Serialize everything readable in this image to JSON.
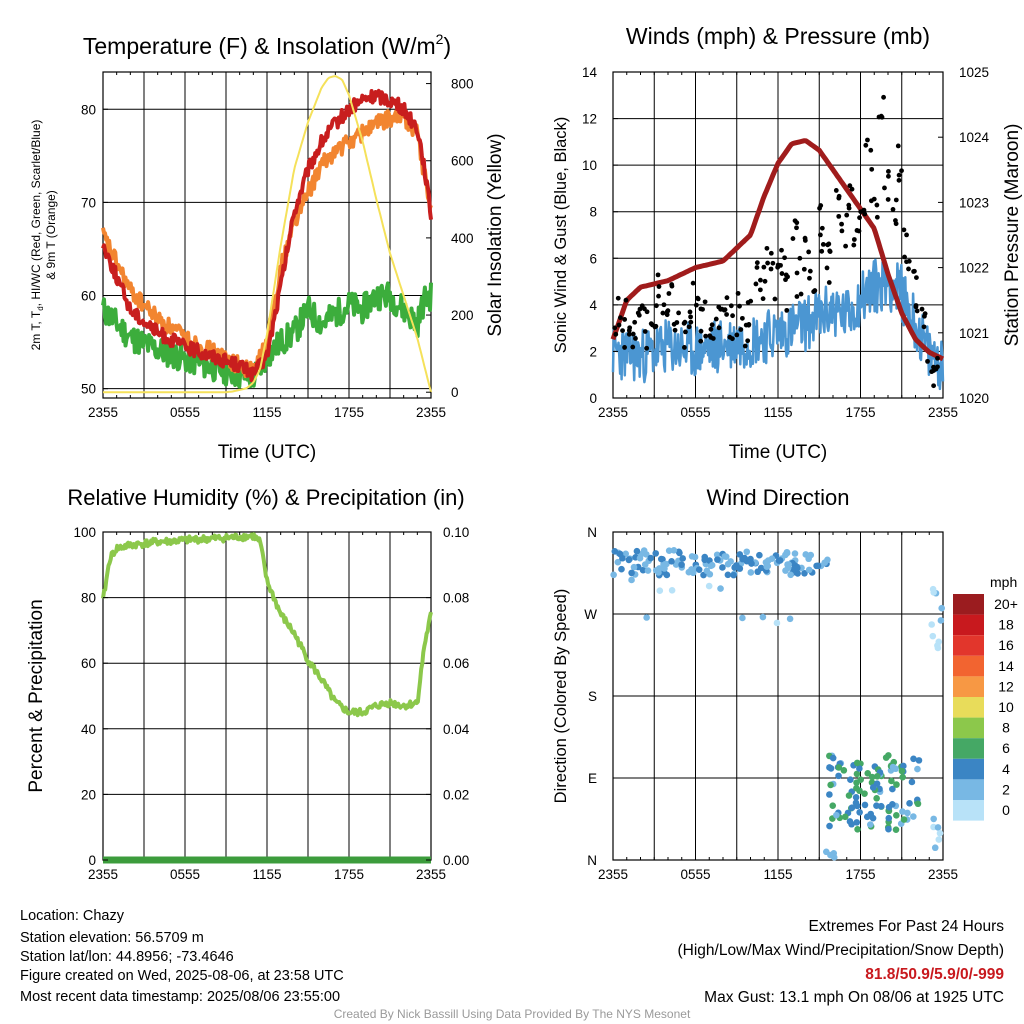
{
  "x_ticks": [
    "2355",
    "0555",
    "1155",
    "1755",
    "2355"
  ],
  "colors": {
    "temp_red": "#c81e1e",
    "td_green": "#3cad3c",
    "temp9m_orange": "#f28530",
    "insolation_yellow": "#f5e15a",
    "wind_blue": "#4b96d2",
    "pressure_maroon": "#a01c1c",
    "rh_green": "#8cc84b",
    "precip_green": "#3c9c3c",
    "extremes_red": "#c8191e"
  },
  "chart_data": [
    {
      "type": "line",
      "title": "Temperature (F) & Insolation (W/m",
      "title_sup": "2",
      "title_end": ")",
      "xlabel": "Time (UTC)",
      "ylabel_line1": "2m T, T",
      "ylabel_sub": "d",
      "ylabel_line1_end": ", HI/WC (Red, Green, Scarlet/Blue)",
      "ylabel_line2": "& 9m T (Orange)",
      "ylabel_right": "Solar Insolation (Yellow)",
      "ylim": [
        49,
        84
      ],
      "ylim_right": [
        -15,
        830
      ],
      "yticks": [
        "50",
        "60",
        "70",
        "80"
      ],
      "yticks_right": [
        "0",
        "200",
        "400",
        "600",
        "800"
      ],
      "x_hours": [
        0,
        2,
        4,
        6,
        8,
        10,
        11,
        12,
        13,
        14,
        15,
        16,
        17,
        18,
        19,
        20,
        21,
        22,
        23,
        23.5,
        24
      ],
      "series": [
        {
          "color": "#3cad3c",
          "values": [
            58.5,
            55.5,
            54.2,
            53.2,
            52.3,
            51.5,
            51.2,
            53.5,
            55.0,
            56.0,
            58.5,
            57.0,
            58.0,
            59.0,
            58.5,
            60.0,
            60.0,
            58.5,
            57.0,
            59.5,
            60.0
          ]
        },
        {
          "color": "#f28530",
          "values": [
            66.5,
            60.5,
            57.5,
            55.5,
            54.0,
            52.5,
            51.8,
            55.0,
            63.0,
            68.0,
            71.0,
            74.0,
            75.5,
            76.5,
            77.5,
            78.5,
            79.0,
            79.2,
            77.5,
            73.0,
            69.5
          ]
        },
        {
          "color": "#c81e1e",
          "values": [
            65.5,
            58.5,
            56.0,
            54.5,
            53.5,
            52.5,
            51.5,
            53.5,
            61.0,
            69.0,
            73.5,
            76.5,
            78.5,
            80.0,
            81.0,
            81.5,
            81.0,
            80.0,
            78.0,
            74.0,
            68.5
          ]
        }
      ],
      "insolation": {
        "color": "#f5e15a",
        "x_hours": [
          0,
          9,
          9.5,
          10.5,
          11,
          11.5,
          12,
          13,
          14,
          15,
          16,
          16.5,
          17,
          17.5,
          18,
          19,
          20,
          21,
          22,
          23,
          24
        ],
        "values": [
          0,
          0,
          2,
          10,
          25,
          60,
          150,
          380,
          580,
          700,
          790,
          815,
          820,
          810,
          770,
          650,
          500,
          360,
          250,
          140,
          0
        ]
      }
    },
    {
      "type": "line",
      "title": "Winds (mph) & Pressure (mb)",
      "xlabel": "Time (UTC)",
      "ylabel": "Sonic Wind & Gust (Blue, Black)",
      "ylabel_right": "Station Pressure (Maroon)",
      "ylim": [
        0,
        14
      ],
      "ylim_right": [
        1020,
        1025
      ],
      "yticks": [
        "0",
        "2",
        "4",
        "6",
        "8",
        "10",
        "12",
        "14"
      ],
      "yticks_right": [
        "1020",
        "1021",
        "1022",
        "1023",
        "1024",
        "1025"
      ],
      "series": [
        {
          "name": "wind",
          "color": "#4b96d2",
          "x_hours": [
            0,
            2,
            4,
            6,
            8,
            10,
            12,
            14,
            16,
            17,
            18,
            19,
            20,
            21,
            22,
            23,
            24
          ],
          "values": [
            2.0,
            1.8,
            2.2,
            2.0,
            2.3,
            2.5,
            2.8,
            3.2,
            3.8,
            3.5,
            4.3,
            4.8,
            5.0,
            4.5,
            3.2,
            1.8,
            1.5
          ]
        },
        {
          "name": "pressure",
          "color": "#a01c1c",
          "x_hours": [
            0,
            1,
            2,
            4,
            6,
            8,
            10,
            11,
            12,
            13,
            14,
            15,
            16,
            17,
            18,
            19,
            20,
            21,
            22,
            23,
            24
          ],
          "values": [
            1020.9,
            1021.5,
            1021.7,
            1021.8,
            1022.0,
            1022.1,
            1022.5,
            1023.1,
            1023.6,
            1023.9,
            1023.95,
            1023.8,
            1023.5,
            1023.2,
            1022.9,
            1022.6,
            1021.9,
            1021.3,
            1020.9,
            1020.7,
            1020.6
          ]
        }
      ],
      "gusts": {
        "color": "#000000",
        "x_hours": [
          0.3,
          0.7,
          1.1,
          1.6,
          2.0,
          2.4,
          2.9,
          3.3,
          3.8,
          4.2,
          4.6,
          5.1,
          5.5,
          6.0,
          6.4,
          6.9,
          7.3,
          7.8,
          8.2,
          8.7,
          9.1,
          9.6,
          10.0,
          10.5,
          10.9,
          11.4,
          11.8,
          12.3,
          12.7,
          13.2,
          13.6,
          14.1,
          14.5,
          15.0,
          15.4,
          15.9,
          16.3,
          16.8,
          17.2,
          17.7,
          18.1,
          18.6,
          19.0,
          19.5,
          19.9,
          20.4,
          20.8,
          21.3,
          21.7,
          22.2,
          22.6,
          23.1,
          23.5
        ],
        "values": [
          3.5,
          2.8,
          3.6,
          2.5,
          4.2,
          3.0,
          3.8,
          4.5,
          3.2,
          4.0,
          3.5,
          2.8,
          3.6,
          4.4,
          3.0,
          3.5,
          2.9,
          3.8,
          4.2,
          3.1,
          3.6,
          2.7,
          3.4,
          5.5,
          4.8,
          6.2,
          5.0,
          5.8,
          4.6,
          6.8,
          5.2,
          6.0,
          5.4,
          7.5,
          6.4,
          5.8,
          8.2,
          7.0,
          9.0,
          6.6,
          8.5,
          10.5,
          7.8,
          12.5,
          9.2,
          8.0,
          10.2,
          6.6,
          5.8,
          4.5,
          3.0,
          1.6,
          1.2
        ]
      }
    },
    {
      "type": "line",
      "title": "Relative Humidity (%) & Precipitation (in)",
      "ylabel": "Percent & Precipitation",
      "ylim": [
        0,
        100
      ],
      "ylim_right": [
        0,
        0.1
      ],
      "yticks": [
        "0",
        "20",
        "40",
        "60",
        "80",
        "100"
      ],
      "yticks_right": [
        "0.00",
        "0.02",
        "0.04",
        "0.06",
        "0.08",
        "0.10"
      ],
      "series": [
        {
          "name": "rh",
          "color": "#8cc84b",
          "x_hours": [
            0,
            0.5,
            1,
            2,
            3,
            4,
            5,
            6,
            7,
            8,
            9,
            10,
            11,
            11.5,
            12,
            13,
            14,
            15,
            16,
            17,
            18,
            19,
            20,
            21,
            22,
            23,
            23.5,
            24
          ],
          "values": [
            79,
            92,
            95,
            96,
            96.5,
            97,
            97.2,
            97.5,
            97.8,
            98,
            98.2,
            98.5,
            98.8,
            97,
            85,
            75,
            69,
            61,
            55,
            48,
            45,
            45,
            47,
            48,
            47,
            48,
            65,
            75
          ]
        },
        {
          "name": "precip",
          "color": "#3c9c3c",
          "x_hours": [
            0,
            24
          ],
          "values": [
            0,
            0
          ]
        }
      ]
    },
    {
      "type": "scatter",
      "title": "Wind Direction",
      "ylabel": "Direction (Colored By Speed)",
      "ylim": [
        0,
        360
      ],
      "yticks": [
        "N",
        "E",
        "S",
        "W",
        "N"
      ],
      "colorbar": {
        "title": "mph",
        "labels": [
          "20+",
          "18",
          "16",
          "14",
          "12",
          "10",
          "8",
          "6",
          "4",
          "2",
          "0"
        ],
        "colors": [
          "#9b1c1f",
          "#c8191e",
          "#e2362c",
          "#f26430",
          "#f79844",
          "#e8dc5a",
          "#8cc84b",
          "#45a865",
          "#3b85c4",
          "#78b8e4",
          "#b8e2f8"
        ]
      },
      "clusters": [
        {
          "x_range": [
            0,
            15.6
          ],
          "y_range": [
            312,
            340
          ],
          "speed_range": [
            1,
            5
          ],
          "count": 140
        },
        {
          "x_range": [
            0.5,
            15.6
          ],
          "y_range": [
            260,
            312
          ],
          "speed_range": [
            0,
            3
          ],
          "count": 10
        },
        {
          "x_range": [
            15.6,
            22.5
          ],
          "y_range": [
            30,
            115
          ],
          "speed_range": [
            2,
            7
          ],
          "count": 110
        },
        {
          "x_range": [
            15.5,
            16.2
          ],
          "y_range": [
            0,
            10
          ],
          "speed_range": [
            1,
            3
          ],
          "count": 4
        },
        {
          "x_range": [
            23.0,
            24
          ],
          "y_range": [
            0,
            60
          ],
          "speed_range": [
            0,
            2
          ],
          "count": 6
        },
        {
          "x_range": [
            23.1,
            24
          ],
          "y_range": [
            230,
            300
          ],
          "speed_range": [
            0,
            2
          ],
          "count": 10
        }
      ]
    }
  ],
  "info": {
    "location": "Location: Chazy",
    "elevation": "Station elevation: 56.5709 m",
    "latlon": "Station lat/lon: 44.8956; -73.4646",
    "created": "Figure created on Wed, 2025-08-06, at 23:58 UTC",
    "recent": "Most recent data timestamp: 2025/08/06 23:55:00"
  },
  "extremes": {
    "title": "Extremes For Past 24 Hours",
    "subtitle": "(High/Low/Max Wind/Precipitation/Snow Depth)",
    "values": "81.8/50.9/5.9/0/-999",
    "gust": "Max Gust: 13.1 mph On 08/06 at 1925 UTC"
  },
  "credit": "Created By Nick Bassill Using Data Provided By The NYS Mesonet"
}
